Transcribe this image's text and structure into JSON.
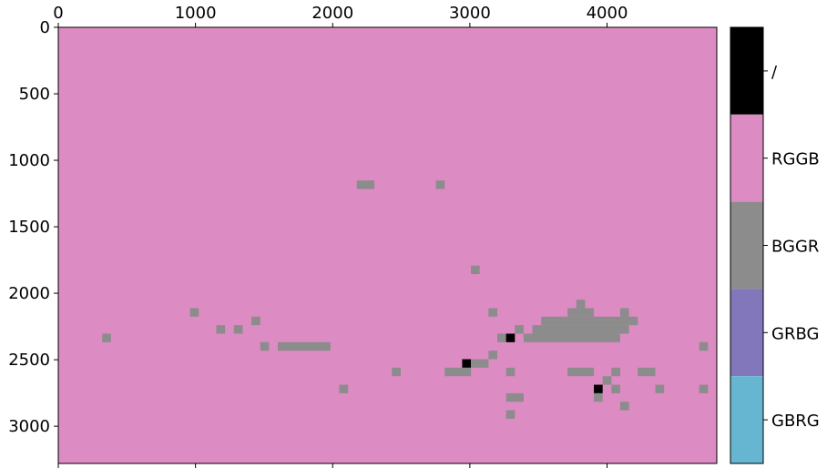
{
  "chart_data": {
    "type": "heatmap",
    "title": "",
    "xlabel": "",
    "ylabel": "",
    "xlim": [
      0,
      4800
    ],
    "ylim": [
      3280,
      0
    ],
    "x_axis_position": "top",
    "x_ticks": [
      0,
      1000,
      2000,
      3000,
      4000
    ],
    "y_ticks": [
      0,
      500,
      1000,
      1500,
      2000,
      2500,
      3000
    ],
    "cell_size": 64,
    "background": {
      "label": "RGGB",
      "color": "#dc8bc3"
    },
    "colorbar": [
      {
        "label": "/",
        "color": "#000000"
      },
      {
        "label": "RGGB",
        "color": "#dc8bc3"
      },
      {
        "label": "BGGR",
        "color": "#8c8c8c"
      },
      {
        "label": "GRBG",
        "color": "#8377bb"
      },
      {
        "label": "GBRG",
        "color": "#66b6d2"
      }
    ],
    "cells": [
      {
        "x": 2176,
        "y": 1152,
        "w": 128,
        "label": "BGGR"
      },
      {
        "x": 2752,
        "y": 1152,
        "w": 64,
        "label": "BGGR"
      },
      {
        "x": 3008,
        "y": 1792,
        "w": 64,
        "label": "BGGR"
      },
      {
        "x": 960,
        "y": 2112,
        "w": 64,
        "label": "BGGR"
      },
      {
        "x": 3136,
        "y": 2112,
        "w": 64,
        "label": "BGGR"
      },
      {
        "x": 3776,
        "y": 2048,
        "w": 64,
        "label": "BGGR"
      },
      {
        "x": 4096,
        "y": 2112,
        "w": 64,
        "label": "BGGR"
      },
      {
        "x": 3712,
        "y": 2112,
        "w": 192,
        "label": "BGGR"
      },
      {
        "x": 1408,
        "y": 2176,
        "w": 64,
        "label": "BGGR"
      },
      {
        "x": 3520,
        "y": 2176,
        "w": 704,
        "label": "BGGR"
      },
      {
        "x": 1152,
        "y": 2240,
        "w": 64,
        "label": "BGGR"
      },
      {
        "x": 1280,
        "y": 2240,
        "w": 64,
        "label": "BGGR"
      },
      {
        "x": 3328,
        "y": 2240,
        "w": 64,
        "label": "BGGR"
      },
      {
        "x": 3456,
        "y": 2240,
        "w": 704,
        "label": "BGGR"
      },
      {
        "x": 320,
        "y": 2304,
        "w": 64,
        "label": "BGGR"
      },
      {
        "x": 3200,
        "y": 2304,
        "w": 64,
        "label": "BGGR"
      },
      {
        "x": 3392,
        "y": 2304,
        "w": 704,
        "label": "BGGR"
      },
      {
        "x": 3264,
        "y": 2304,
        "w": 64,
        "label": "/"
      },
      {
        "x": 1472,
        "y": 2368,
        "w": 64,
        "label": "BGGR"
      },
      {
        "x": 1600,
        "y": 2368,
        "w": 384,
        "label": "BGGR"
      },
      {
        "x": 4672,
        "y": 2368,
        "w": 64,
        "label": "BGGR"
      },
      {
        "x": 3136,
        "y": 2432,
        "w": 64,
        "label": "BGGR"
      },
      {
        "x": 2944,
        "y": 2496,
        "w": 64,
        "label": "/"
      },
      {
        "x": 3008,
        "y": 2496,
        "w": 128,
        "label": "BGGR"
      },
      {
        "x": 2432,
        "y": 2560,
        "w": 64,
        "label": "BGGR"
      },
      {
        "x": 2816,
        "y": 2560,
        "w": 192,
        "label": "BGGR"
      },
      {
        "x": 3264,
        "y": 2560,
        "w": 64,
        "label": "BGGR"
      },
      {
        "x": 3712,
        "y": 2560,
        "w": 192,
        "label": "BGGR"
      },
      {
        "x": 4032,
        "y": 2560,
        "w": 64,
        "label": "BGGR"
      },
      {
        "x": 4224,
        "y": 2560,
        "w": 128,
        "label": "BGGR"
      },
      {
        "x": 3968,
        "y": 2624,
        "w": 64,
        "label": "BGGR"
      },
      {
        "x": 2048,
        "y": 2688,
        "w": 64,
        "label": "BGGR"
      },
      {
        "x": 3904,
        "y": 2688,
        "w": 64,
        "label": "/"
      },
      {
        "x": 4032,
        "y": 2688,
        "w": 64,
        "label": "BGGR"
      },
      {
        "x": 4352,
        "y": 2688,
        "w": 64,
        "label": "BGGR"
      },
      {
        "x": 4672,
        "y": 2688,
        "w": 64,
        "label": "BGGR"
      },
      {
        "x": 3264,
        "y": 2752,
        "w": 128,
        "label": "BGGR"
      },
      {
        "x": 3904,
        "y": 2752,
        "w": 64,
        "label": "BGGR"
      },
      {
        "x": 4096,
        "y": 2816,
        "w": 64,
        "label": "BGGR"
      },
      {
        "x": 3264,
        "y": 2880,
        "w": 64,
        "label": "BGGR"
      }
    ]
  }
}
